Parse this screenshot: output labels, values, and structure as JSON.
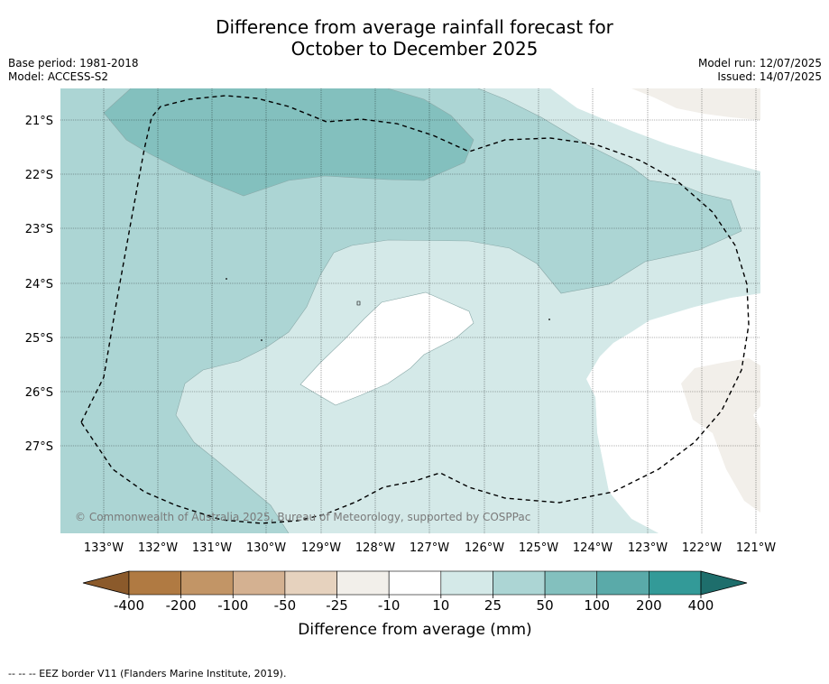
{
  "title": {
    "line1": "Difference from average rainfall forecast for",
    "line2": "October to December 2025"
  },
  "meta": {
    "base_period": "Base period: 1981-2018",
    "model": "Model: ACCESS-S2",
    "model_run": "Model run: 12/07/2025",
    "issued": "Issued: 14/07/2025"
  },
  "map": {
    "lat_labels": [
      "21°S",
      "22°S",
      "23°S",
      "24°S",
      "25°S",
      "26°S",
      "27°S"
    ],
    "lon_labels": [
      "133°W",
      "132°W",
      "131°W",
      "130°W",
      "129°W",
      "128°W",
      "127°W",
      "126°W",
      "125°W",
      "124°W",
      "123°W",
      "122°W",
      "121°W"
    ],
    "copyright": "© Commonwealth of Australia 2025, Bureau of Meteorology, supported by COSPPac",
    "colors": {
      "wet_10_25": "#d4e9e8",
      "wet_25_50": "#acd5d4",
      "wet_50_100": "#83c0be",
      "dry_10_25": "#f2efea",
      "neutral": "#ffffff"
    }
  },
  "colorbar": {
    "ticks": [
      "-400",
      "-200",
      "-100",
      "-50",
      "-25",
      "-10",
      "10",
      "25",
      "50",
      "100",
      "200",
      "400"
    ],
    "colors": [
      "#8b5a2b",
      "#b07a42",
      "#c29566",
      "#d4b191",
      "#e6d2be",
      "#f2efea",
      "#ffffff",
      "#d4e9e8",
      "#acd5d4",
      "#83c0be",
      "#5aaaa9",
      "#339a98",
      "#1e6e6c"
    ],
    "title": "Difference from average (mm)"
  },
  "footnote": "--  --  -- EEZ border V11 (Flanders Marine Institute, 2019)."
}
